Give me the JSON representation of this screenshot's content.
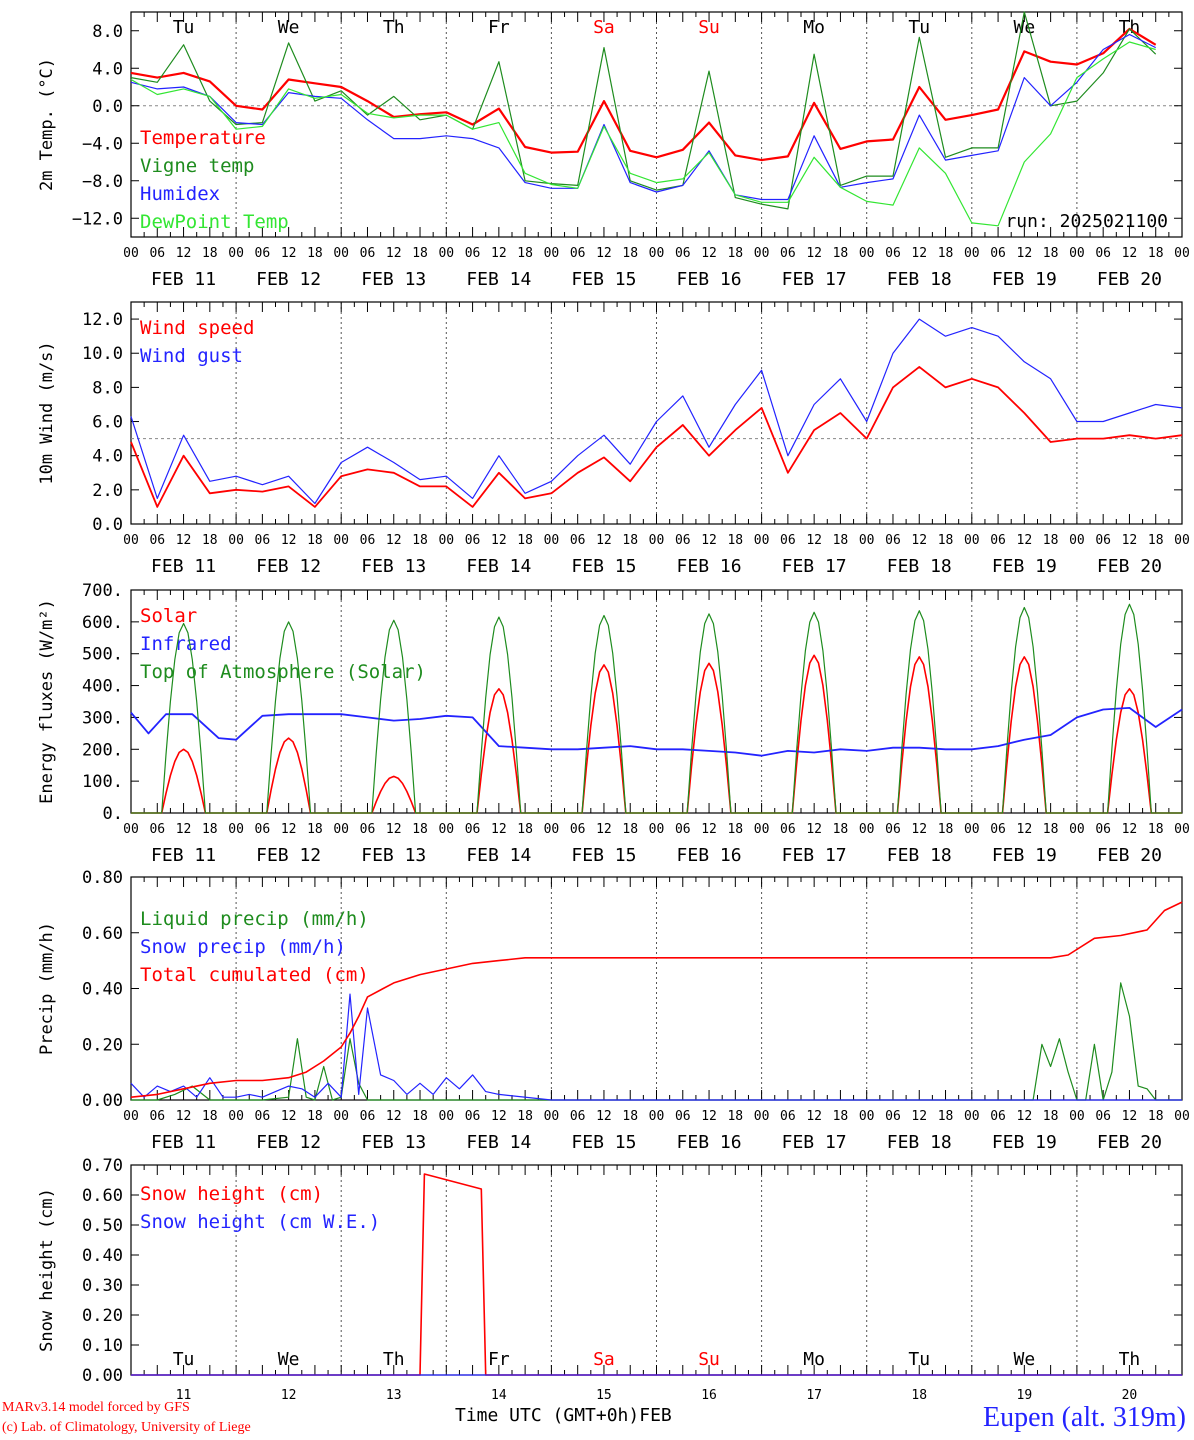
{
  "footer": {
    "credit_line_1": "MARv3.14 model forced by GFS",
    "credit_line_2": "(c) Lab. of Climatology, University of Liege",
    "x_axis_title": "Time UTC (GMT+0h)FEB",
    "station": "Eupen (alt. 319m)"
  },
  "run_label": "run: 2025021100",
  "days": {
    "weekday_labels": [
      "Tu",
      "We",
      "Th",
      "Fr",
      "Sa",
      "Su",
      "Mo",
      "Tu",
      "We",
      "Th"
    ],
    "weekend_flags": [
      false,
      false,
      false,
      false,
      true,
      true,
      false,
      false,
      false,
      false
    ],
    "date_labels": [
      "FEB 11",
      "FEB 12",
      "FEB 13",
      "FEB 14",
      "FEB 15",
      "FEB 16",
      "FEB 17",
      "FEB 18",
      "FEB 19",
      "FEB 20"
    ],
    "day_numbers": [
      "11",
      "12",
      "13",
      "14",
      "15",
      "16",
      "17",
      "18",
      "19",
      "20"
    ],
    "hour_labels": [
      "00",
      "06",
      "12",
      "18"
    ],
    "final_hour_label": "00"
  },
  "colors": {
    "red": "#ff0000",
    "green": "#1e8c1e",
    "blue": "#2323ff",
    "lightgreen": "#33e633",
    "weekend": "#ff0000"
  },
  "chart_data": [
    {
      "type": "line",
      "ylabel": "2m Temp. (°C)",
      "ylim": [
        -14,
        10
      ],
      "y_ticks": [
        "8.0",
        "4.0",
        "0.0",
        "−4.0",
        "−8.0",
        "−12.0"
      ],
      "y_tick_values": [
        8,
        4,
        0,
        -4,
        -8,
        -12
      ],
      "hline": 0,
      "x": [
        0,
        6,
        12,
        18,
        24,
        30,
        36,
        42,
        48,
        54,
        60,
        66,
        72,
        78,
        84,
        90,
        96,
        102,
        108,
        114,
        120,
        126,
        132,
        138,
        144,
        150,
        156,
        162,
        168,
        174,
        180,
        186,
        192,
        198,
        204,
        210,
        216,
        222,
        228,
        234
      ],
      "series": [
        {
          "name": "Temperature",
          "color": "#ff0000",
          "width": 2.2,
          "values": [
            3.5,
            3.0,
            3.5,
            2.6,
            0,
            -0.4,
            2.8,
            2.4,
            2.0,
            0.5,
            -1.2,
            -0.9,
            -0.7,
            -2.0,
            -0.3,
            -4.4,
            -5.0,
            -4.9,
            0.5,
            -4.8,
            -5.5,
            -4.7,
            -1.8,
            -5.3,
            -5.8,
            -5.4,
            0.3,
            -4.6,
            -3.8,
            -3.6,
            2.0,
            -1.5,
            -1.0,
            -0.4,
            5.8,
            4.7,
            4.4,
            5.6,
            8.2,
            6.5
          ]
        },
        {
          "name": "Vigne temp",
          "color": "#1e8c1e",
          "width": 1.2,
          "values": [
            3.0,
            2.5,
            6.5,
            0.5,
            -2.0,
            -1.8,
            6.7,
            0.5,
            1.6,
            -1.0,
            1.0,
            -1.5,
            -1.0,
            -2.5,
            4.7,
            -8.0,
            -8.3,
            -8.5,
            6.2,
            -8.0,
            -9.0,
            -8.5,
            3.7,
            -9.8,
            -10.5,
            -11.0,
            5.5,
            -8.5,
            -7.5,
            -7.5,
            7.3,
            -5.5,
            -4.5,
            -4.5,
            10.0,
            0.0,
            0.5,
            3.5,
            8.2,
            5.5
          ]
        },
        {
          "name": "Humidex",
          "color": "#2323ff",
          "width": 1.2,
          "values": [
            2.5,
            1.8,
            2.0,
            1.0,
            -1.8,
            -2.0,
            1.4,
            1.0,
            0.8,
            -1.5,
            -3.5,
            -3.5,
            -3.2,
            -3.5,
            -4.5,
            -8.2,
            -8.8,
            -8.8,
            -2.0,
            -8.2,
            -9.2,
            -8.5,
            -4.8,
            -9.5,
            -10.0,
            -10.0,
            -3.2,
            -8.7,
            -8.2,
            -7.8,
            -1.0,
            -5.8,
            -5.3,
            -4.8,
            3.0,
            0.0,
            2.5,
            6.0,
            7.6,
            6.2
          ]
        },
        {
          "name": "DewPoint Temp",
          "color": "#33e633",
          "width": 1.2,
          "values": [
            2.8,
            1.2,
            1.8,
            1.0,
            -2.5,
            -2.2,
            1.8,
            0.8,
            1.2,
            -0.8,
            -1.3,
            -1.0,
            -1.0,
            -2.5,
            -1.8,
            -7.2,
            -8.4,
            -8.8,
            -2.2,
            -7.2,
            -8.2,
            -7.8,
            -5.0,
            -9.5,
            -10.3,
            -10.3,
            -5.5,
            -8.7,
            -10.2,
            -10.6,
            -4.5,
            -7.2,
            -12.5,
            -12.8,
            -6.0,
            -3.0,
            3.0,
            5.0,
            6.8,
            6.0
          ]
        }
      ]
    },
    {
      "type": "line",
      "ylabel": "10m Wind (m/s)",
      "ylim": [
        0,
        13
      ],
      "y_ticks": [
        "12.0",
        "10.0",
        "8.0",
        "6.0",
        "4.0",
        "2.0",
        "0.0"
      ],
      "y_tick_values": [
        12,
        10,
        8,
        6,
        4,
        2,
        0
      ],
      "hline": 5,
      "x": [
        0,
        6,
        12,
        18,
        24,
        30,
        36,
        42,
        48,
        54,
        60,
        66,
        72,
        78,
        84,
        90,
        96,
        102,
        108,
        114,
        120,
        126,
        132,
        138,
        144,
        150,
        156,
        162,
        168,
        174,
        180,
        186,
        192,
        198,
        204,
        210,
        216,
        222,
        228,
        234,
        240
      ],
      "series": [
        {
          "name": "Wind speed",
          "color": "#ff0000",
          "width": 1.8,
          "values": [
            4.8,
            1.0,
            4.0,
            1.8,
            2.0,
            1.9,
            2.2,
            1.0,
            2.8,
            3.2,
            3.0,
            2.2,
            2.2,
            1.0,
            3.0,
            1.5,
            1.8,
            3.0,
            3.9,
            2.5,
            4.5,
            5.8,
            4.0,
            5.5,
            6.8,
            3.0,
            5.5,
            6.5,
            5.0,
            8.0,
            9.2,
            8.0,
            8.5,
            8.0,
            6.5,
            4.8,
            5.0,
            5.0,
            5.2,
            5.0,
            5.2
          ]
        },
        {
          "name": "Wind gust",
          "color": "#2323ff",
          "width": 1.2,
          "values": [
            6.3,
            1.5,
            5.2,
            2.5,
            2.8,
            2.3,
            2.8,
            1.2,
            3.6,
            4.5,
            3.6,
            2.6,
            2.8,
            1.5,
            4.0,
            1.8,
            2.5,
            4.0,
            5.2,
            3.5,
            6.0,
            7.5,
            4.5,
            7.0,
            9.0,
            4.0,
            7.0,
            8.5,
            6.0,
            10.0,
            12.0,
            11.0,
            11.5,
            11.0,
            9.5,
            8.5,
            6.0,
            6.0,
            6.5,
            7.0,
            6.8
          ]
        }
      ]
    },
    {
      "type": "line",
      "ylabel": "Energy fluxes (W/m²)",
      "ylim": [
        0,
        700
      ],
      "y_ticks": [
        "700.",
        "600.",
        "500.",
        "400.",
        "300.",
        "200.",
        "100.",
        "0."
      ],
      "y_tick_values": [
        700,
        600,
        500,
        400,
        300,
        200,
        100,
        0
      ],
      "series": [
        {
          "name": "Solar",
          "color": "#ff0000",
          "width": 1.6,
          "peaks": [
            200,
            235,
            115,
            390,
            465,
            470,
            495,
            490,
            490,
            390
          ]
        },
        {
          "name": "Infrared",
          "color": "#2323ff",
          "width": 1.8,
          "x": [
            0,
            4,
            8,
            14,
            20,
            24,
            30,
            36,
            42,
            48,
            54,
            60,
            66,
            72,
            78,
            84,
            90,
            96,
            102,
            108,
            114,
            120,
            126,
            132,
            138,
            144,
            150,
            156,
            162,
            168,
            174,
            180,
            186,
            192,
            198,
            204,
            210,
            216,
            222,
            228,
            234,
            240
          ],
          "values": [
            315,
            250,
            310,
            310,
            235,
            230,
            305,
            310,
            310,
            310,
            300,
            290,
            295,
            305,
            300,
            210,
            205,
            200,
            200,
            205,
            210,
            200,
            200,
            195,
            190,
            180,
            195,
            190,
            200,
            195,
            205,
            205,
            200,
            200,
            210,
            230,
            245,
            300,
            325,
            330,
            270,
            325
          ]
        },
        {
          "name": "Top of Atmosphere (Solar)",
          "color": "#1e8c1e",
          "width": 1.2,
          "peaks": [
            595,
            600,
            605,
            615,
            620,
            625,
            630,
            635,
            645,
            655
          ]
        }
      ]
    },
    {
      "type": "line",
      "ylabel": "Precip (mm/h)",
      "ylim": [
        0,
        0.8
      ],
      "y_ticks": [
        "0.80",
        "0.60",
        "0.40",
        "0.20",
        "0.00"
      ],
      "y_tick_values": [
        0.8,
        0.6,
        0.4,
        0.2,
        0.0
      ],
      "series": [
        {
          "name": "Liquid precip (mm/h)",
          "color": "#1e8c1e",
          "width": 1.2,
          "x": [
            0,
            6,
            10,
            14,
            18,
            24,
            30,
            36,
            38,
            40,
            42,
            44,
            46,
            48,
            50,
            52,
            54,
            56,
            60,
            66,
            72,
            78,
            84,
            90,
            96,
            204,
            206,
            208,
            210,
            212,
            214,
            216,
            218,
            220,
            222,
            224,
            226,
            228,
            230,
            232,
            234,
            236,
            238,
            240
          ],
          "values": [
            0,
            0,
            0.02,
            0.05,
            0,
            0,
            0,
            0.01,
            0.22,
            0.01,
            0,
            0.12,
            0,
            0.01,
            0.22,
            0.06,
            0,
            0,
            0,
            0,
            0,
            0,
            0,
            0,
            0,
            0,
            0,
            0.2,
            0.12,
            0.22,
            0.1,
            0,
            0,
            0.2,
            0,
            0.1,
            0.42,
            0.3,
            0.05,
            0.04,
            0,
            0,
            0,
            0
          ]
        },
        {
          "name": "Snow precip (mm/h)",
          "color": "#2323ff",
          "width": 1.2,
          "x": [
            0,
            3,
            6,
            9,
            12,
            15,
            18,
            21,
            24,
            27,
            30,
            33,
            36,
            39,
            42,
            45,
            48,
            50,
            52,
            54,
            57,
            60,
            63,
            66,
            69,
            72,
            75,
            78,
            81,
            84,
            96,
            240
          ],
          "values": [
            0.06,
            0.01,
            0.05,
            0.03,
            0.05,
            0.01,
            0.08,
            0.01,
            0.01,
            0.02,
            0.01,
            0.03,
            0.05,
            0.04,
            0.01,
            0.06,
            0.01,
            0.38,
            0.02,
            0.33,
            0.09,
            0.07,
            0.02,
            0.06,
            0.02,
            0.08,
            0.04,
            0.09,
            0.03,
            0.02,
            0,
            0
          ]
        },
        {
          "name": "Total cumulated (cm)",
          "color": "#ff0000",
          "width": 1.6,
          "x": [
            0,
            6,
            12,
            18,
            24,
            30,
            36,
            40,
            44,
            48,
            50,
            52,
            54,
            60,
            66,
            72,
            78,
            84,
            90,
            96,
            102,
            210,
            214,
            220,
            226,
            232,
            236,
            240
          ],
          "values": [
            0.01,
            0.02,
            0.04,
            0.06,
            0.07,
            0.07,
            0.08,
            0.1,
            0.14,
            0.19,
            0.24,
            0.3,
            0.37,
            0.42,
            0.45,
            0.47,
            0.49,
            0.5,
            0.51,
            0.51,
            0.51,
            0.51,
            0.52,
            0.58,
            0.59,
            0.61,
            0.68,
            0.71
          ]
        }
      ]
    },
    {
      "type": "line",
      "ylabel": "Snow height (cm)",
      "ylim": [
        0,
        0.7
      ],
      "y_ticks": [
        "0.70",
        "0.60",
        "0.50",
        "0.40",
        "0.30",
        "0.20",
        "0.10",
        "0.00"
      ],
      "y_tick_values": [
        0.7,
        0.6,
        0.5,
        0.4,
        0.3,
        0.2,
        0.1,
        0.0
      ],
      "series": [
        {
          "name": "Snow height (cm)",
          "color": "#ff0000",
          "width": 1.6,
          "x": [
            0,
            66,
            67,
            80,
            81,
            240
          ],
          "values": [
            0,
            0,
            0.67,
            0.62,
            0,
            0
          ]
        },
        {
          "name": "Snow height (cm W.E.)",
          "color": "#2323ff",
          "width": 1.2,
          "x": [
            0,
            240
          ],
          "values": [
            0,
            0
          ]
        }
      ]
    }
  ]
}
